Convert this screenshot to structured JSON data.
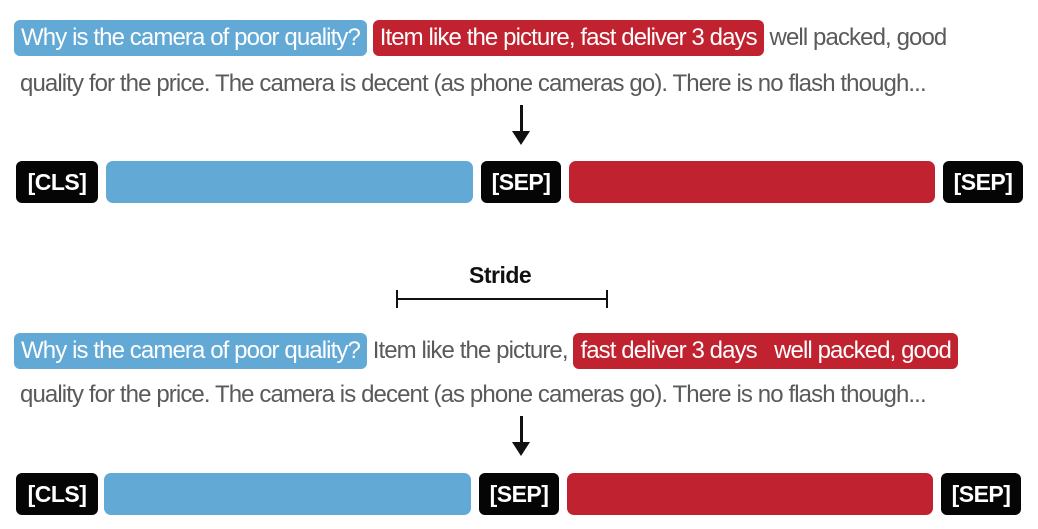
{
  "top": {
    "question": "Why is the camera of poor quality?",
    "context_highlight": "Item like the picture, fast deliver 3 days",
    "context_rest_line1": "well packed, good",
    "line2": "quality for the price. The camera is decent (as phone cameras go). There is no flash though..."
  },
  "bottom": {
    "question": "Why is the camera of poor quality?",
    "context_plain": "Item like the picture,",
    "context_highlight": "fast deliver 3 days   well packed, good",
    "line2": "quality for the price. The camera is decent (as phone cameras go). There is no flash though..."
  },
  "tokens": {
    "cls": "[CLS]",
    "sep": "[SEP]"
  },
  "stride_label": "Stride",
  "colors": {
    "question": "#62a9d6",
    "context": "#c0222f",
    "token_bg": "#050505"
  }
}
